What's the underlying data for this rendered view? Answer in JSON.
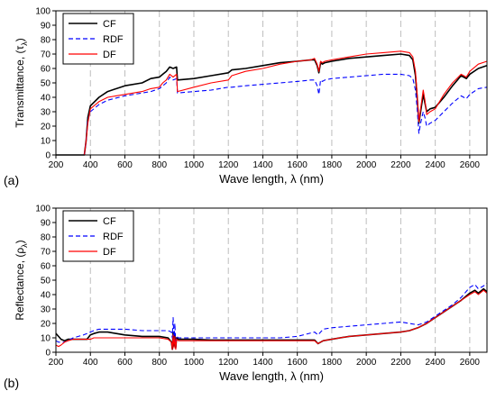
{
  "chart_data": [
    {
      "panel_label": "(a)",
      "type": "line",
      "xlabel": "Wave length, λ (nm)",
      "ylabel": "Transmittance, (τ",
      "ylabel_sub": "λ",
      "ylabel_close": ")",
      "xlim": [
        200,
        2700
      ],
      "ylim": [
        0,
        100
      ],
      "xticks": [
        200,
        400,
        600,
        800,
        1000,
        1200,
        1400,
        1600,
        1800,
        2000,
        2200,
        2400,
        2600
      ],
      "yticks": [
        0,
        10,
        20,
        30,
        40,
        50,
        60,
        70,
        80,
        90,
        100
      ],
      "grid": "vertical dashed",
      "legend_position": "top-left",
      "series": [
        {
          "name": "CF",
          "color": "#000000",
          "dash": "solid",
          "x": [
            200,
            340,
            365,
            375,
            385,
            400,
            450,
            500,
            600,
            700,
            750,
            800,
            820,
            840,
            860,
            880,
            900,
            905,
            1000,
            1100,
            1200,
            1220,
            1300,
            1400,
            1500,
            1600,
            1680,
            1700,
            1715,
            1725,
            1735,
            1745,
            1760,
            1800,
            1900,
            2000,
            2100,
            2200,
            2250,
            2270,
            2285,
            2295,
            2305,
            2315,
            2330,
            2340,
            2350,
            2370,
            2400,
            2450,
            2500,
            2550,
            2580,
            2600,
            2650,
            2700
          ],
          "y": [
            0,
            0,
            0,
            10,
            26,
            34,
            40,
            44,
            48,
            50,
            53,
            54,
            56,
            58,
            61,
            60,
            61,
            52,
            53,
            55,
            57,
            59,
            60,
            62,
            64,
            65,
            66,
            66,
            62,
            57,
            64,
            63,
            64,
            65,
            67,
            68,
            69,
            70,
            69,
            66,
            55,
            40,
            22,
            30,
            42,
            36,
            30,
            32,
            33,
            40,
            48,
            55,
            53,
            56,
            60,
            62
          ]
        },
        {
          "name": "RDF",
          "color": "#0000ff",
          "dash": "dashed",
          "x": [
            200,
            340,
            365,
            375,
            385,
            400,
            450,
            500,
            600,
            700,
            750,
            800,
            820,
            840,
            860,
            880,
            900,
            905,
            1000,
            1100,
            1200,
            1220,
            1300,
            1400,
            1500,
            1600,
            1680,
            1700,
            1715,
            1725,
            1735,
            1745,
            1760,
            1800,
            1900,
            2000,
            2100,
            2200,
            2250,
            2270,
            2285,
            2295,
            2305,
            2315,
            2330,
            2340,
            2350,
            2370,
            2400,
            2450,
            2500,
            2550,
            2580,
            2600,
            2650,
            2700
          ],
          "y": [
            0,
            0,
            0,
            10,
            24,
            30,
            35,
            38,
            41,
            43,
            44,
            46,
            48,
            50,
            54,
            52,
            53,
            43,
            44,
            45,
            47,
            47,
            48,
            49,
            50,
            51,
            52,
            52,
            48,
            42,
            52,
            51,
            52,
            53,
            54,
            55,
            56,
            56,
            55,
            53,
            45,
            32,
            15,
            22,
            30,
            26,
            20,
            22,
            24,
            30,
            36,
            41,
            39,
            42,
            46,
            47
          ]
        },
        {
          "name": "DF",
          "color": "#ff0000",
          "dash": "solid",
          "x": [
            200,
            340,
            365,
            375,
            385,
            400,
            450,
            500,
            600,
            700,
            750,
            800,
            820,
            840,
            860,
            880,
            900,
            905,
            1000,
            1100,
            1200,
            1220,
            1300,
            1400,
            1500,
            1600,
            1680,
            1700,
            1715,
            1725,
            1735,
            1745,
            1760,
            1800,
            1900,
            2000,
            2100,
            2200,
            2250,
            2270,
            2285,
            2295,
            2305,
            2315,
            2330,
            2340,
            2350,
            2370,
            2400,
            2450,
            2500,
            2550,
            2580,
            2600,
            2650,
            2700
          ],
          "y": [
            0,
            0,
            0,
            10,
            22,
            32,
            37,
            40,
            42,
            44,
            46,
            47,
            50,
            52,
            56,
            54,
            56,
            44,
            47,
            50,
            52,
            55,
            58,
            60,
            63,
            65,
            66,
            67,
            63,
            58,
            65,
            64,
            65,
            66,
            68,
            70,
            71,
            72,
            71,
            68,
            58,
            42,
            23,
            32,
            45,
            38,
            28,
            30,
            32,
            42,
            50,
            56,
            54,
            58,
            63,
            65
          ]
        }
      ]
    },
    {
      "panel_label": "(b)",
      "type": "line",
      "xlabel": "Wave length, λ (nm)",
      "ylabel": "Reflectance, (ρ",
      "ylabel_sub": "λ",
      "ylabel_close": ")",
      "xlim": [
        200,
        2700
      ],
      "ylim": [
        0,
        100
      ],
      "xticks": [
        200,
        400,
        600,
        800,
        1000,
        1200,
        1400,
        1600,
        1800,
        2000,
        2200,
        2400,
        2600
      ],
      "yticks": [
        0,
        10,
        20,
        30,
        40,
        50,
        60,
        70,
        80,
        90,
        100
      ],
      "grid": "vertical dashed",
      "legend_position": "top-left",
      "series": [
        {
          "name": "CF",
          "color": "#000000",
          "dash": "solid",
          "x": [
            200,
            215,
            230,
            250,
            270,
            300,
            330,
            360,
            380,
            400,
            420,
            450,
            500,
            550,
            600,
            700,
            800,
            850,
            870,
            875,
            880,
            885,
            890,
            895,
            900,
            910,
            1000,
            1100,
            1200,
            1300,
            1400,
            1500,
            1600,
            1700,
            1720,
            1750,
            1800,
            1900,
            2000,
            2100,
            2200,
            2250,
            2300,
            2350,
            2400,
            2450,
            2500,
            2550,
            2600,
            2630,
            2650,
            2680,
            2700
          ],
          "y": [
            13,
            11,
            9,
            8,
            9,
            9,
            9,
            9,
            9,
            12,
            13,
            14,
            14,
            13,
            12,
            11,
            11,
            10,
            7,
            2,
            14,
            4,
            13,
            3,
            10,
            9,
            9,
            8.5,
            8.5,
            8.5,
            8.5,
            8.5,
            8.5,
            8.5,
            6,
            8,
            9,
            11,
            12,
            13,
            14,
            15,
            17,
            20,
            24,
            28,
            32,
            36,
            41,
            43,
            41,
            44,
            42
          ]
        },
        {
          "name": "RDF",
          "color": "#0000ff",
          "dash": "dashed",
          "x": [
            200,
            215,
            230,
            250,
            270,
            300,
            330,
            360,
            380,
            400,
            420,
            450,
            500,
            550,
            600,
            700,
            800,
            850,
            870,
            875,
            880,
            885,
            890,
            895,
            900,
            910,
            1000,
            1100,
            1200,
            1300,
            1400,
            1500,
            1600,
            1700,
            1720,
            1750,
            1800,
            1900,
            2000,
            2100,
            2200,
            2250,
            2300,
            2350,
            2400,
            2450,
            2500,
            2550,
            2600,
            2630,
            2650,
            2680,
            2700
          ],
          "y": [
            8,
            7,
            7,
            7,
            8,
            10,
            11,
            12,
            13,
            14,
            15,
            16,
            16,
            16,
            16,
            15,
            15,
            15,
            14,
            10,
            24,
            8,
            20,
            5,
            11,
            10,
            10,
            10,
            10,
            10,
            10,
            10,
            11,
            14,
            12,
            16,
            17,
            18,
            19,
            20,
            21,
            20,
            19,
            21,
            25,
            29,
            33,
            38,
            45,
            47,
            44,
            46,
            48
          ]
        },
        {
          "name": "DF",
          "color": "#ff0000",
          "dash": "solid",
          "x": [
            200,
            215,
            230,
            250,
            270,
            300,
            330,
            360,
            380,
            400,
            420,
            450,
            500,
            550,
            600,
            700,
            800,
            850,
            870,
            875,
            880,
            885,
            890,
            895,
            900,
            910,
            1000,
            1100,
            1200,
            1300,
            1400,
            1500,
            1600,
            1700,
            1720,
            1750,
            1800,
            1900,
            2000,
            2100,
            2200,
            2250,
            2300,
            2350,
            2400,
            2450,
            2500,
            2550,
            2600,
            2630,
            2650,
            2680,
            2700
          ],
          "y": [
            5,
            4,
            5,
            7,
            8,
            9,
            9,
            9,
            9,
            9,
            10,
            10,
            10,
            10,
            10,
            10,
            10,
            9,
            7,
            2,
            12,
            3,
            11,
            2,
            9,
            8,
            8,
            8,
            8,
            8,
            8,
            8,
            8,
            8,
            6,
            8,
            9,
            11,
            12,
            13,
            14,
            15,
            17,
            20,
            24,
            28,
            32,
            36,
            40,
            42,
            40,
            43,
            41
          ]
        }
      ]
    }
  ]
}
